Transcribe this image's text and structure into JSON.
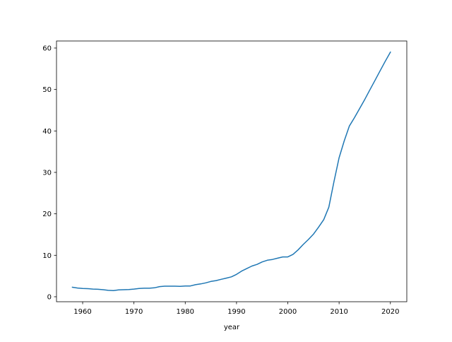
{
  "chart_data": {
    "type": "line",
    "title": "",
    "xlabel": "year",
    "ylabel": "",
    "xlim": [
      1954.9,
      2023.2
    ],
    "ylim": [
      -1.2,
      61.7
    ],
    "xticks": [
      1960,
      1970,
      1980,
      1990,
      2000,
      2010,
      2020
    ],
    "yticks": [
      0,
      10,
      20,
      30,
      40,
      50,
      60
    ],
    "grid": false,
    "legend": "none",
    "series": [
      {
        "color": "#1f77b4",
        "x": [
          1958,
          1959,
          1960,
          1961,
          1962,
          1963,
          1964,
          1965,
          1966,
          1967,
          1968,
          1969,
          1970,
          1971,
          1972,
          1973,
          1974,
          1975,
          1976,
          1977,
          1978,
          1979,
          1980,
          1981,
          1982,
          1983,
          1984,
          1985,
          1986,
          1987,
          1988,
          1989,
          1990,
          1991,
          1992,
          1993,
          1994,
          1995,
          1996,
          1997,
          1998,
          1999,
          2000,
          2001,
          2002,
          2003,
          2004,
          2005,
          2006,
          2007,
          2008,
          2009,
          2010,
          2011,
          2012,
          2013,
          2014,
          2015,
          2016,
          2017,
          2018,
          2019,
          2020
        ],
        "y": [
          2.3,
          2.1,
          2.0,
          1.95,
          1.85,
          1.8,
          1.7,
          1.55,
          1.5,
          1.65,
          1.7,
          1.75,
          1.85,
          2.0,
          2.05,
          2.05,
          2.15,
          2.45,
          2.55,
          2.55,
          2.55,
          2.5,
          2.6,
          2.6,
          2.9,
          3.1,
          3.35,
          3.7,
          3.9,
          4.2,
          4.5,
          4.8,
          5.4,
          6.2,
          6.8,
          7.4,
          7.8,
          8.4,
          8.8,
          9.0,
          9.3,
          9.6,
          9.6,
          10.2,
          11.3,
          12.6,
          13.8,
          15.1,
          16.8,
          18.6,
          21.6,
          27.8,
          33.5,
          37.6,
          41.2,
          43.2,
          45.4,
          47.6,
          49.9,
          52.2,
          54.5,
          56.8,
          59.0
        ]
      }
    ]
  }
}
